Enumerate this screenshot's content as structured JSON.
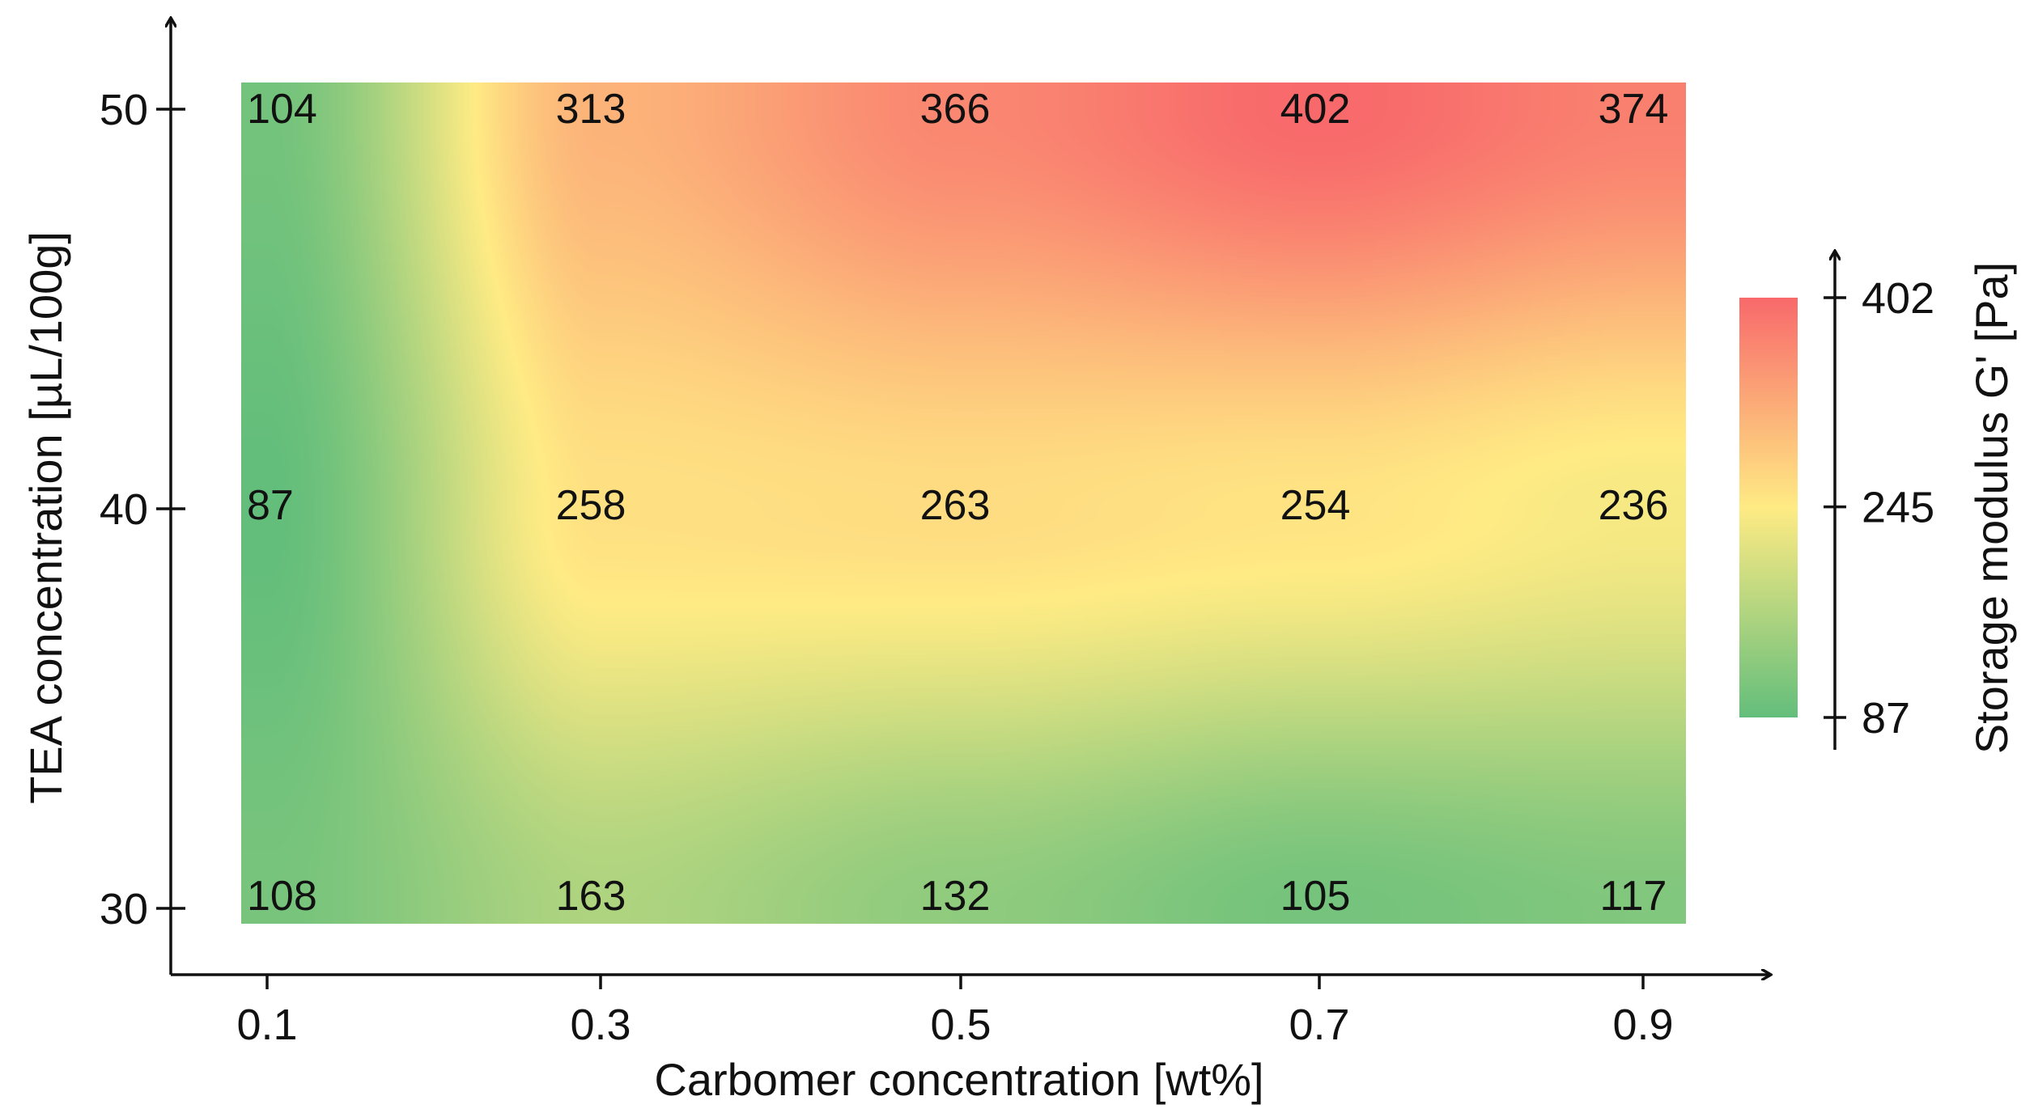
{
  "chart_data": {
    "type": "heatmap",
    "title": "",
    "xlabel": "Carbomer concentration [wt%]",
    "ylabel": "TEA concentration [µL/100g]",
    "x": [
      0.1,
      0.3,
      0.5,
      0.7,
      0.9
    ],
    "x_tick_labels": [
      "0.1",
      "0.3",
      "0.5",
      "0.7",
      "0.9"
    ],
    "y": [
      30,
      40,
      50
    ],
    "y_tick_labels": [
      "30",
      "40",
      "50"
    ],
    "values": [
      [
        108,
        163,
        132,
        105,
        117
      ],
      [
        87,
        258,
        263,
        254,
        236
      ],
      [
        104,
        313,
        366,
        402,
        374
      ]
    ],
    "colorbar": {
      "label": "Storage modulus G' [Pa]",
      "min": 87,
      "mid": 245,
      "max": 402,
      "tick_labels": [
        "87",
        "245",
        "402"
      ],
      "colors": {
        "low": "#63be7b",
        "mid": "#ffeb84",
        "high": "#f8696b"
      }
    },
    "interpolation": "smooth",
    "grid": false
  }
}
